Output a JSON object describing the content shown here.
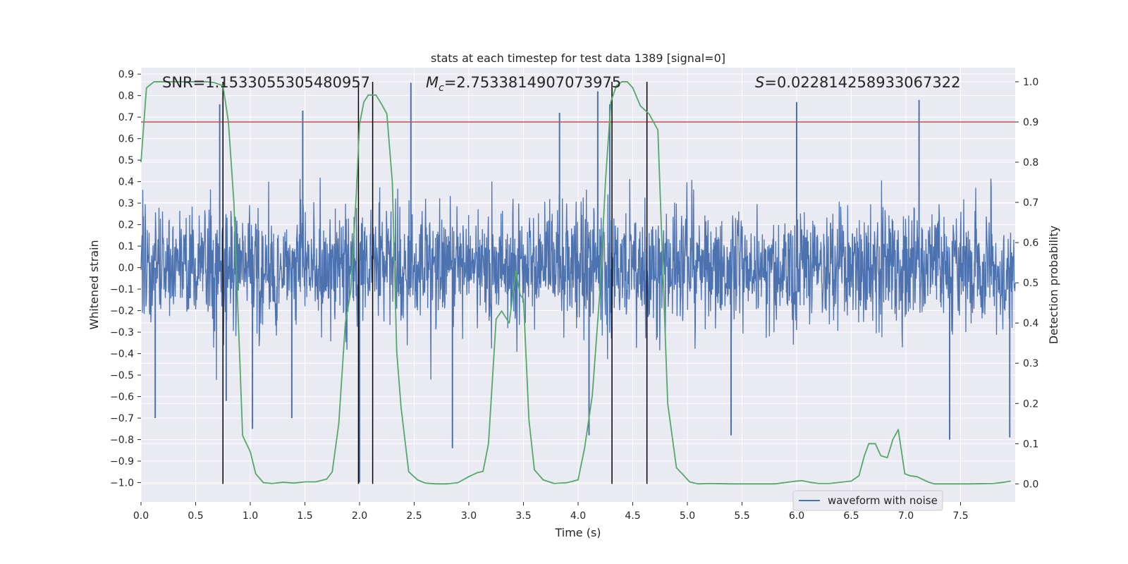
{
  "chart_data": {
    "type": "line",
    "title": "stats at each timestep for test data 1389 [signal=0]",
    "xlabel": "Time (s)",
    "ylabel": "Whitened strain",
    "ylabel_right": "Detection probability",
    "xlim": [
      0.0,
      8.0
    ],
    "ylim": [
      -1.09,
      0.93
    ],
    "ylim_right": [
      -0.045,
      1.035
    ],
    "x_ticks": [
      "0.0",
      "0.5",
      "1.0",
      "1.5",
      "2.0",
      "2.5",
      "3.0",
      "3.5",
      "4.0",
      "4.5",
      "5.0",
      "5.5",
      "6.0",
      "6.5",
      "7.0",
      "7.5"
    ],
    "y_ticks": [
      "0.9",
      "0.8",
      "0.7",
      "0.6",
      "0.5",
      "0.4",
      "0.3",
      "0.2",
      "0.1",
      "0.0",
      "−0.1",
      "−0.2",
      "−0.3",
      "−0.4",
      "−0.5",
      "−0.6",
      "−0.7",
      "−0.8",
      "−0.9",
      "−1.0"
    ],
    "y_right_ticks": [
      "1.0",
      "0.9",
      "0.8",
      "0.7",
      "0.6",
      "0.5",
      "0.4",
      "0.3",
      "0.2",
      "0.1",
      "0.0"
    ],
    "annotations": {
      "snr": "SNR=1.1533055305480957",
      "mc_symbol": "M",
      "mc_sub": "c",
      "mc_value": "=2.7533814907073975",
      "s_symbol": "S",
      "s_value": "=0.022814258933067322"
    },
    "legend": {
      "label": "waveform with noise",
      "position": "lower-right"
    },
    "threshold": {
      "value": 0.9,
      "axis": "right",
      "color": "#c44e52"
    },
    "vertical_lines": [
      0.75,
      1.99,
      2.12,
      4.31,
      4.63
    ],
    "waveform": {
      "name": "waveform with noise",
      "color": "#4c72b0",
      "duration": 8.0,
      "noise_sigma": 0.14,
      "peaks": [
        {
          "x": 0.72,
          "y": 0.76
        },
        {
          "x": 1.48,
          "y": 0.73
        },
        {
          "x": 2.47,
          "y": 0.86
        },
        {
          "x": 3.83,
          "y": 0.72
        },
        {
          "x": 4.18,
          "y": 0.82
        },
        {
          "x": 4.29,
          "y": 0.76
        },
        {
          "x": 6.0,
          "y": 0.77
        },
        {
          "x": 7.12,
          "y": 0.78
        },
        {
          "x": 0.78,
          "y": -0.62
        },
        {
          "x": 1.02,
          "y": -0.75
        },
        {
          "x": 1.38,
          "y": -0.7
        },
        {
          "x": 2.0,
          "y": -1.0
        },
        {
          "x": 2.85,
          "y": -0.84
        },
        {
          "x": 4.1,
          "y": -0.78
        },
        {
          "x": 5.4,
          "y": -0.78
        },
        {
          "x": 7.4,
          "y": -0.8
        },
        {
          "x": 7.95,
          "y": -0.79
        },
        {
          "x": 0.13,
          "y": -0.7
        }
      ]
    },
    "detection_probability": {
      "color": "#55a868",
      "x": [
        0.0,
        0.05,
        0.12,
        0.2,
        0.3,
        0.4,
        0.5,
        0.6,
        0.67,
        0.72,
        0.75,
        0.8,
        0.85,
        0.93,
        1.0,
        1.05,
        1.12,
        1.2,
        1.3,
        1.4,
        1.5,
        1.6,
        1.7,
        1.75,
        1.81,
        1.87,
        1.92,
        1.97,
        2.0,
        2.04,
        2.08,
        2.15,
        2.2,
        2.25,
        2.3,
        2.34,
        2.38,
        2.45,
        2.53,
        2.6,
        2.7,
        2.8,
        2.9,
        3.0,
        3.08,
        3.13,
        3.18,
        3.25,
        3.3,
        3.37,
        3.43,
        3.47,
        3.5,
        3.55,
        3.6,
        3.68,
        3.78,
        3.9,
        4.0,
        4.06,
        4.13,
        4.2,
        4.25,
        4.3,
        4.35,
        4.4,
        4.45,
        4.5,
        4.57,
        4.65,
        4.73,
        4.82,
        4.9,
        4.97,
        5.02,
        5.1,
        5.2,
        5.4,
        5.6,
        5.8,
        6.0,
        6.05,
        6.12,
        6.2,
        6.3,
        6.5,
        6.57,
        6.62,
        6.66,
        6.72,
        6.77,
        6.83,
        6.88,
        6.93,
        6.99,
        7.04,
        7.1,
        7.2,
        7.26,
        7.4,
        7.6,
        7.8,
        7.9,
        7.96
      ],
      "y": [
        0.8,
        0.985,
        1.0,
        1.0,
        1.0,
        1.0,
        1.0,
        1.0,
        0.998,
        0.993,
        0.99,
        0.9,
        0.7,
        0.12,
        0.08,
        0.025,
        0.003,
        0.001,
        0.004,
        0.002,
        0.005,
        0.005,
        0.012,
        0.03,
        0.15,
        0.4,
        0.48,
        0.72,
        0.895,
        0.95,
        0.967,
        0.967,
        0.945,
        0.92,
        0.75,
        0.33,
        0.19,
        0.03,
        0.01,
        0.002,
        0.0,
        0.0,
        0.003,
        0.018,
        0.028,
        0.031,
        0.1,
        0.41,
        0.43,
        0.4,
        0.53,
        0.47,
        0.46,
        0.16,
        0.035,
        0.01,
        0.001,
        0.003,
        0.01,
        0.09,
        0.22,
        0.48,
        0.75,
        0.95,
        0.99,
        1.0,
        1.0,
        0.985,
        0.94,
        0.92,
        0.88,
        0.2,
        0.04,
        0.02,
        0.005,
        0.0,
        0.001,
        0.0,
        0.0,
        0.0,
        0.007,
        0.008,
        0.004,
        0.001,
        0.001,
        0.007,
        0.02,
        0.07,
        0.1,
        0.1,
        0.07,
        0.065,
        0.11,
        0.135,
        0.025,
        0.02,
        0.018,
        0.005,
        0.0,
        0.0,
        0.0,
        0.001,
        0.004,
        0.007
      ]
    }
  }
}
